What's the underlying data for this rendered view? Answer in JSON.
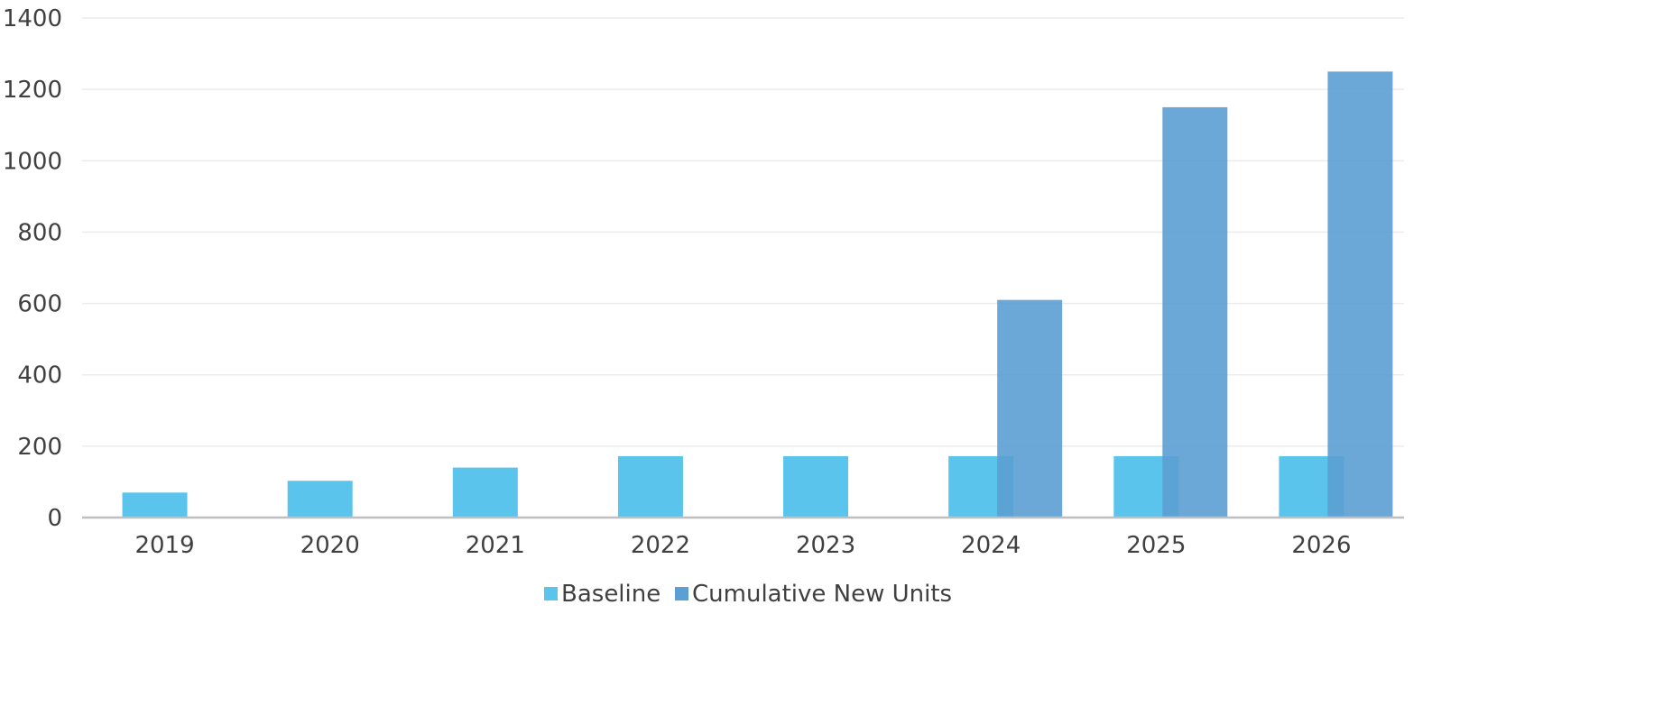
{
  "chart_data": {
    "type": "bar",
    "categories": [
      "2019",
      "2020",
      "2021",
      "2022",
      "2023",
      "2024",
      "2025",
      "2026"
    ],
    "series": [
      {
        "name": "Baseline",
        "values": [
          70,
          103,
          140,
          172,
          172,
          172,
          172,
          172
        ],
        "color": "#5BC4EC"
      },
      {
        "name": "Cumulative New Units",
        "values": [
          0,
          0,
          0,
          0,
          0,
          610,
          1150,
          1250
        ],
        "color": "#5B9FD3"
      }
    ],
    "title": "",
    "xlabel": "",
    "ylabel": "",
    "ylim": [
      0,
      1400
    ],
    "yticks": [
      "0",
      "200",
      "400",
      "600",
      "800",
      "1000",
      "1200",
      "1400"
    ],
    "grid": true,
    "legend_position": "bottom",
    "bars_overlap": true
  }
}
